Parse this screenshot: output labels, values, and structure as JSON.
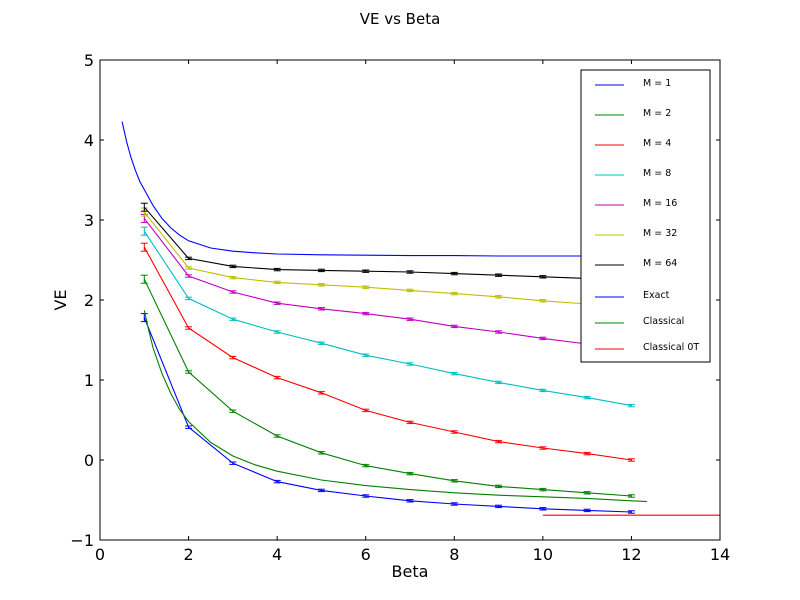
{
  "chart_data": {
    "type": "line",
    "title": "VE vs Beta",
    "xlabel": "Beta",
    "ylabel": "VE",
    "xlim": [
      0,
      14
    ],
    "ylim": [
      -1,
      5
    ],
    "xticks": [
      0,
      2,
      4,
      6,
      8,
      10,
      12,
      14
    ],
    "yticks": [
      -1,
      0,
      1,
      2,
      3,
      4,
      5
    ],
    "xtick_labels": [
      "0",
      "2",
      "4",
      "6",
      "8",
      "10",
      "12",
      "14"
    ],
    "ytick_labels": [
      "−1",
      "0",
      "1",
      "2",
      "3",
      "4",
      "5"
    ],
    "grid": false,
    "legend_position": "top-right",
    "series": [
      {
        "name": "M = 1",
        "color": "#0000ff",
        "errorbars": true,
        "x": [
          1,
          2,
          3,
          4,
          5,
          6,
          7,
          8,
          9,
          10,
          11,
          12
        ],
        "y": [
          1.78,
          0.41,
          -0.04,
          -0.27,
          -0.38,
          -0.45,
          -0.51,
          -0.55,
          -0.58,
          -0.61,
          -0.63,
          -0.65
        ]
      },
      {
        "name": "M = 2",
        "color": "#008000",
        "errorbars": true,
        "x": [
          1,
          2,
          3,
          4,
          5,
          6,
          7,
          8,
          9,
          10,
          11,
          12
        ],
        "y": [
          2.26,
          1.1,
          0.61,
          0.3,
          0.09,
          -0.07,
          -0.17,
          -0.26,
          -0.33,
          -0.37,
          -0.41,
          -0.45
        ]
      },
      {
        "name": "M = 4",
        "color": "#ff0000",
        "errorbars": true,
        "x": [
          1,
          2,
          3,
          4,
          5,
          6,
          7,
          8,
          9,
          10,
          11,
          12
        ],
        "y": [
          2.66,
          1.65,
          1.28,
          1.03,
          0.84,
          0.62,
          0.47,
          0.35,
          0.23,
          0.15,
          0.08,
          0.0
        ]
      },
      {
        "name": "M = 8",
        "color": "#00bfbf",
        "errorbars": true,
        "x": [
          1,
          2,
          3,
          4,
          5,
          6,
          7,
          8,
          9,
          10,
          11,
          12
        ],
        "y": [
          2.86,
          2.02,
          1.76,
          1.6,
          1.46,
          1.31,
          1.2,
          1.08,
          0.97,
          0.87,
          0.78,
          0.68
        ]
      },
      {
        "name": "M = 16",
        "color": "#bf00bf",
        "errorbars": true,
        "x": [
          1,
          2,
          3,
          4,
          5,
          6,
          7,
          8,
          9,
          10,
          11,
          12
        ],
        "y": [
          3.02,
          2.3,
          2.1,
          1.96,
          1.89,
          1.83,
          1.76,
          1.67,
          1.6,
          1.52,
          1.45,
          1.38
        ]
      },
      {
        "name": "M = 32",
        "color": "#bfbf00",
        "errorbars": true,
        "x": [
          1,
          2,
          3,
          4,
          5,
          6,
          7,
          8,
          9,
          10,
          11,
          12
        ],
        "y": [
          3.1,
          2.4,
          2.28,
          2.22,
          2.19,
          2.16,
          2.12,
          2.08,
          2.04,
          1.99,
          1.95,
          1.91
        ]
      },
      {
        "name": "M = 64",
        "color": "#000000",
        "errorbars": true,
        "x": [
          1,
          2,
          3,
          4,
          5,
          6,
          7,
          8,
          9,
          10,
          11,
          12
        ],
        "y": [
          3.16,
          2.52,
          2.42,
          2.38,
          2.37,
          2.36,
          2.35,
          2.33,
          2.31,
          2.29,
          2.27,
          2.25
        ]
      },
      {
        "name": "Exact",
        "color": "#0000ff",
        "errorbars": false,
        "x": [
          0.5,
          0.6,
          0.7,
          0.8,
          0.9,
          1.0,
          1.2,
          1.4,
          1.6,
          1.8,
          2.0,
          2.5,
          3,
          3.5,
          4,
          5,
          6,
          7,
          8,
          9,
          10,
          11,
          12
        ],
        "y": [
          4.23,
          3.98,
          3.78,
          3.62,
          3.48,
          3.38,
          3.18,
          3.02,
          2.9,
          2.81,
          2.74,
          2.65,
          2.61,
          2.59,
          2.575,
          2.565,
          2.56,
          2.555,
          2.555,
          2.55,
          2.55,
          2.55,
          2.55
        ]
      },
      {
        "name": "Classical",
        "color": "#008000",
        "errorbars": false,
        "x": [
          1.0,
          1.1,
          1.2,
          1.4,
          1.6,
          1.8,
          2.0,
          2.5,
          3,
          3.5,
          4,
          5,
          6,
          7,
          8,
          9,
          10,
          11,
          12,
          12.35
        ],
        "y": [
          1.87,
          1.62,
          1.4,
          1.08,
          0.83,
          0.63,
          0.48,
          0.22,
          0.05,
          -0.06,
          -0.14,
          -0.25,
          -0.32,
          -0.37,
          -0.41,
          -0.44,
          -0.46,
          -0.48,
          -0.51,
          -0.52
        ]
      },
      {
        "name": "Classical 0T",
        "color": "#ff0000",
        "errorbars": false,
        "x": [
          10,
          14
        ],
        "y": [
          -0.69,
          -0.69
        ]
      }
    ]
  }
}
